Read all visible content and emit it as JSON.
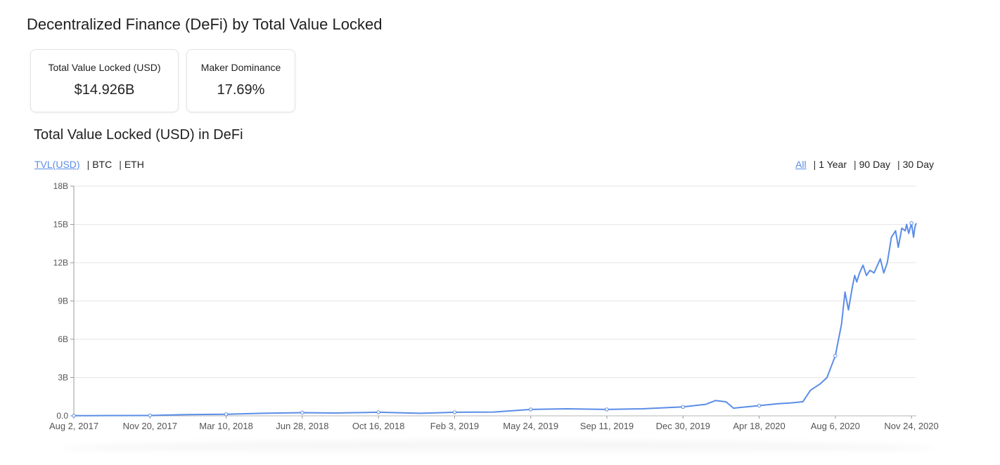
{
  "page_title": "Decentralized Finance (DeFi) by Total Value Locked",
  "cards": [
    {
      "label": "Total Value Locked (USD)",
      "value": "$14.926B"
    },
    {
      "label": "Maker Dominance",
      "value": "17.69%"
    }
  ],
  "chart_title": "Total Value Locked (USD) in DeFi",
  "unit_options": [
    {
      "label": "TVL(USD)",
      "active": true
    },
    {
      "label": "BTC",
      "active": false
    },
    {
      "label": "ETH",
      "active": false
    }
  ],
  "range_options": [
    {
      "label": "All",
      "active": true
    },
    {
      "label": "1 Year",
      "active": false
    },
    {
      "label": "90 Day",
      "active": false
    },
    {
      "label": "30 Day",
      "active": false
    }
  ],
  "colors": {
    "line": "#5b8de6",
    "active_link": "#5b8de6",
    "grid": "#e6e6e6"
  },
  "chart_data": {
    "type": "line",
    "title": "",
    "xlabel": "",
    "ylabel": "",
    "ylim": [
      0,
      18
    ],
    "y_ticks": [
      "0.0",
      "3B",
      "6B",
      "9B",
      "12B",
      "15B",
      "18B"
    ],
    "y_tick_values": [
      0,
      3,
      6,
      9,
      12,
      15,
      18
    ],
    "x_tick_labels": [
      "Aug 2, 2017",
      "Nov 20, 2017",
      "Mar 10, 2018",
      "Jun 28, 2018",
      "Oct 16, 2018",
      "Feb 3, 2019",
      "May 24, 2019",
      "Sep 11, 2019",
      "Dec 30, 2019",
      "Apr 18, 2020",
      "Aug 6, 2020",
      "Nov 24, 2020"
    ],
    "x_tick_dates": [
      "2017-08-02",
      "2017-11-20",
      "2018-03-10",
      "2018-06-28",
      "2018-10-16",
      "2019-02-03",
      "2019-05-24",
      "2019-09-11",
      "2019-12-30",
      "2020-04-18",
      "2020-08-06",
      "2020-11-24"
    ],
    "x_range": [
      "2017-08-02",
      "2020-12-01"
    ],
    "grid": true,
    "legend": "none",
    "series": [
      {
        "name": "TVL(USD)",
        "x": [
          "2017-08-02",
          "2017-09-15",
          "2017-11-20",
          "2018-01-15",
          "2018-03-10",
          "2018-05-01",
          "2018-06-28",
          "2018-08-15",
          "2018-10-16",
          "2018-12-15",
          "2019-02-03",
          "2019-04-01",
          "2019-05-24",
          "2019-07-15",
          "2019-09-11",
          "2019-11-01",
          "2019-12-30",
          "2020-02-01",
          "2020-02-15",
          "2020-03-01",
          "2020-03-12",
          "2020-03-20",
          "2020-04-18",
          "2020-05-15",
          "2020-06-01",
          "2020-06-20",
          "2020-07-01",
          "2020-07-15",
          "2020-07-25",
          "2020-08-01",
          "2020-08-06",
          "2020-08-15",
          "2020-08-20",
          "2020-08-25",
          "2020-08-31",
          "2020-09-03",
          "2020-09-06",
          "2020-09-10",
          "2020-09-15",
          "2020-09-20",
          "2020-09-25",
          "2020-10-01",
          "2020-10-10",
          "2020-10-15",
          "2020-10-20",
          "2020-10-26",
          "2020-11-01",
          "2020-11-05",
          "2020-11-10",
          "2020-11-15",
          "2020-11-17",
          "2020-11-20",
          "2020-11-24",
          "2020-11-27",
          "2020-11-29",
          "2020-12-01"
        ],
        "values": [
          0.01,
          0.02,
          0.03,
          0.1,
          0.12,
          0.2,
          0.25,
          0.22,
          0.28,
          0.2,
          0.28,
          0.3,
          0.5,
          0.55,
          0.5,
          0.55,
          0.7,
          0.9,
          1.2,
          1.1,
          0.6,
          0.65,
          0.8,
          0.95,
          1.0,
          1.1,
          2.0,
          2.5,
          3.0,
          4.0,
          4.7,
          7.2,
          9.7,
          8.3,
          10.2,
          11.0,
          10.5,
          11.2,
          11.8,
          11.0,
          11.4,
          11.2,
          12.3,
          11.2,
          12.0,
          14.0,
          14.5,
          13.2,
          14.7,
          14.5,
          15.0,
          14.3,
          15.1,
          14.0,
          14.8,
          15.1
        ]
      }
    ]
  }
}
